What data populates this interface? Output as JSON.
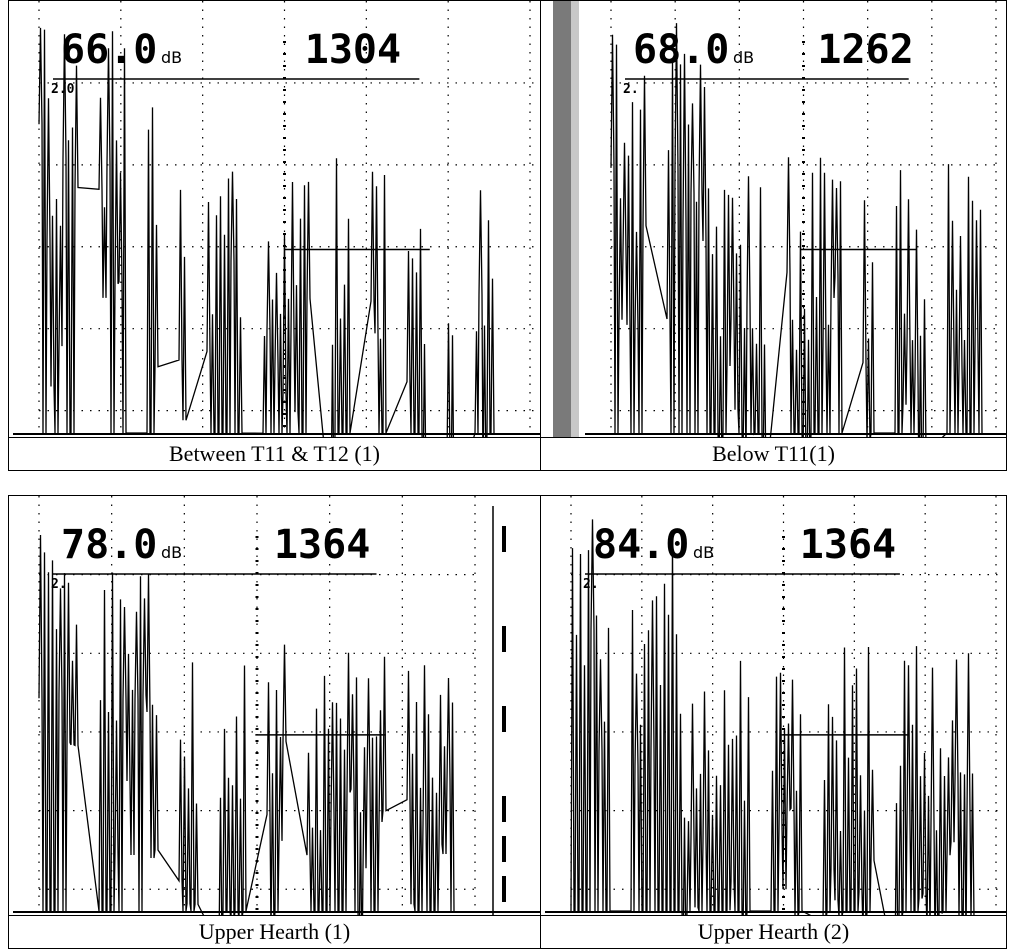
{
  "panels": [
    {
      "gain": "66.0",
      "unit": "dB",
      "reading": "1304",
      "marker": "2.0",
      "caption": "Between T11 & T12 (1)"
    },
    {
      "gain": "68.0",
      "unit": "dB",
      "reading": "1262",
      "marker": "2.",
      "caption": "Below T11(1)"
    },
    {
      "gain": "78.0",
      "unit": "dB",
      "reading": "1364",
      "marker": "2.",
      "caption": "Upper Hearth (1)"
    },
    {
      "gain": "84.0",
      "unit": "dB",
      "reading": "1364",
      "marker": "2.",
      "caption": "Upper Hearth (2)"
    }
  ]
}
